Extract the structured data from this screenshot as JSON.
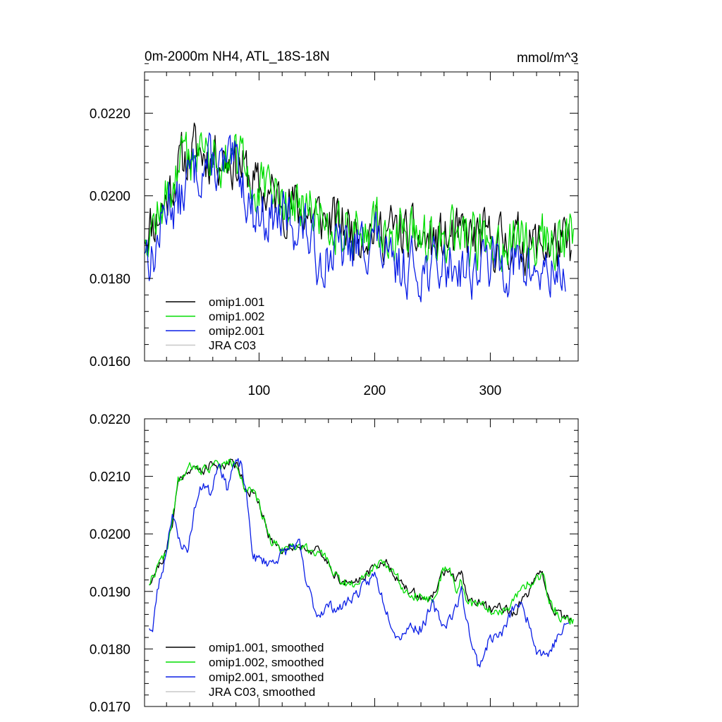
{
  "chart_data": [
    {
      "type": "line",
      "title": "0m-2000m NH4, ATL_18S-18N",
      "units_label": "mmol/m^3",
      "xlim": [
        1,
        376
      ],
      "ylim": [
        0.016,
        0.023
      ],
      "x_major_ticks": [
        100,
        200,
        300
      ],
      "x_tick_labels": [
        "100",
        "200",
        "300"
      ],
      "y_major_ticks": [
        0.016,
        0.018,
        0.02,
        0.022
      ],
      "y_tick_labels": [
        "0.0160",
        "0.0180",
        "0.0200",
        "0.0220"
      ],
      "legend_position": "bottom-left",
      "grid": false,
      "series": [
        {
          "name": "omip1.001",
          "color": "#000000",
          "keypoints": [
            [
              1,
              0.0192
            ],
            [
              10,
              0.0194
            ],
            [
              20,
              0.0199
            ],
            [
              30,
              0.0207
            ],
            [
              45,
              0.0211
            ],
            [
              55,
              0.021
            ],
            [
              70,
              0.021
            ],
            [
              85,
              0.0207
            ],
            [
              100,
              0.0201
            ],
            [
              120,
              0.0199
            ],
            [
              140,
              0.0196
            ],
            [
              160,
              0.0194
            ],
            [
              180,
              0.0192
            ],
            [
              200,
              0.0192
            ],
            [
              220,
              0.0191
            ],
            [
              240,
              0.0189
            ],
            [
              260,
              0.0189
            ],
            [
              280,
              0.019
            ],
            [
              300,
              0.0189
            ],
            [
              320,
              0.0189
            ],
            [
              340,
              0.0188
            ],
            [
              360,
              0.0188
            ],
            [
              370,
              0.0187
            ]
          ],
          "noise": 0.00105,
          "seed": 11
        },
        {
          "name": "omip1.002",
          "color": "#00dd00",
          "keypoints": [
            [
              1,
              0.0192
            ],
            [
              10,
              0.0194
            ],
            [
              20,
              0.0199
            ],
            [
              30,
              0.0207
            ],
            [
              45,
              0.0211
            ],
            [
              55,
              0.021
            ],
            [
              70,
              0.021
            ],
            [
              85,
              0.0207
            ],
            [
              100,
              0.0201
            ],
            [
              120,
              0.0199
            ],
            [
              140,
              0.0196
            ],
            [
              160,
              0.0194
            ],
            [
              180,
              0.0192
            ],
            [
              200,
              0.0192
            ],
            [
              220,
              0.0191
            ],
            [
              240,
              0.0189
            ],
            [
              260,
              0.0189
            ],
            [
              280,
              0.019
            ],
            [
              300,
              0.0189
            ],
            [
              320,
              0.0189
            ],
            [
              340,
              0.0189
            ],
            [
              360,
              0.0189
            ],
            [
              372,
              0.0188
            ]
          ],
          "noise": 0.00105,
          "seed": 12
        },
        {
          "name": "omip2.001",
          "color": "#0a1ee6",
          "keypoints": [
            [
              1,
              0.0189
            ],
            [
              8,
              0.0184
            ],
            [
              15,
              0.0192
            ],
            [
              22,
              0.02
            ],
            [
              30,
              0.0197
            ],
            [
              40,
              0.0205
            ],
            [
              55,
              0.0208
            ],
            [
              70,
              0.0206
            ],
            [
              82,
              0.0207
            ],
            [
              95,
              0.0196
            ],
            [
              110,
              0.0195
            ],
            [
              125,
              0.0194
            ],
            [
              140,
              0.0192
            ],
            [
              150,
              0.0185
            ],
            [
              170,
              0.0187
            ],
            [
              185,
              0.0187
            ],
            [
              200,
              0.0191
            ],
            [
              212,
              0.0182
            ],
            [
              230,
              0.0183
            ],
            [
              250,
              0.0182
            ],
            [
              270,
              0.0184
            ],
            [
              285,
              0.0182
            ],
            [
              300,
              0.0184
            ],
            [
              320,
              0.0183
            ],
            [
              335,
              0.0182
            ],
            [
              350,
              0.0181
            ],
            [
              365,
              0.0182
            ]
          ],
          "noise": 0.00105,
          "seed": 13
        },
        {
          "name": "JRA C03",
          "color": "#c8c8c8",
          "keypoints": [],
          "noise": 0,
          "seed": 14
        }
      ]
    },
    {
      "type": "line",
      "title": "",
      "xlim": [
        1,
        376
      ],
      "ylim": [
        0.017,
        0.022
      ],
      "x_major_ticks": [
        100,
        200,
        300
      ],
      "x_tick_labels": [],
      "y_major_ticks": [
        0.017,
        0.018,
        0.019,
        0.02,
        0.021,
        0.022
      ],
      "y_tick_labels": [
        "0.0170",
        "0.0180",
        "0.0190",
        "0.0200",
        "0.0210",
        "0.0220"
      ],
      "legend_position": "bottom-left",
      "grid": false,
      "series": [
        {
          "name": "omip1.001, smoothed",
          "color": "#000000",
          "keypoints": [
            [
              5,
              0.01915
            ],
            [
              10,
              0.01935
            ],
            [
              15,
              0.0195
            ],
            [
              20,
              0.0197
            ],
            [
              25,
              0.0202
            ],
            [
              30,
              0.0209
            ],
            [
              40,
              0.02115
            ],
            [
              50,
              0.0211
            ],
            [
              60,
              0.0212
            ],
            [
              70,
              0.0212
            ],
            [
              75,
              0.02125
            ],
            [
              82,
              0.0212
            ],
            [
              88,
              0.0208
            ],
            [
              95,
              0.0207
            ],
            [
              100,
              0.0205
            ],
            [
              105,
              0.0202
            ],
            [
              110,
              0.0199
            ],
            [
              120,
              0.01975
            ],
            [
              135,
              0.0198
            ],
            [
              150,
              0.0197
            ],
            [
              160,
              0.0195
            ],
            [
              170,
              0.0192
            ],
            [
              180,
              0.0191
            ],
            [
              190,
              0.0193
            ],
            [
              200,
              0.0194
            ],
            [
              205,
              0.01955
            ],
            [
              215,
              0.0194
            ],
            [
              225,
              0.01905
            ],
            [
              240,
              0.0189
            ],
            [
              250,
              0.01885
            ],
            [
              258,
              0.0193
            ],
            [
              265,
              0.0194
            ],
            [
              270,
              0.0191
            ],
            [
              275,
              0.01935
            ],
            [
              280,
              0.0189
            ],
            [
              290,
              0.0188
            ],
            [
              300,
              0.0187
            ],
            [
              310,
              0.01875
            ],
            [
              320,
              0.0186
            ],
            [
              330,
              0.0189
            ],
            [
              340,
              0.0192
            ],
            [
              345,
              0.0193
            ],
            [
              350,
              0.0189
            ],
            [
              360,
              0.01855
            ],
            [
              370,
              0.0185
            ]
          ],
          "noise": 0.00014,
          "seed": 21
        },
        {
          "name": "omip1.002, smoothed",
          "color": "#00dd00",
          "keypoints": [
            [
              5,
              0.01915
            ],
            [
              10,
              0.01935
            ],
            [
              15,
              0.0195
            ],
            [
              20,
              0.0197
            ],
            [
              25,
              0.0202
            ],
            [
              30,
              0.0209
            ],
            [
              40,
              0.02115
            ],
            [
              50,
              0.0211
            ],
            [
              60,
              0.0212
            ],
            [
              70,
              0.0212
            ],
            [
              75,
              0.02125
            ],
            [
              82,
              0.0212
            ],
            [
              88,
              0.0208
            ],
            [
              95,
              0.0207
            ],
            [
              100,
              0.0205
            ],
            [
              105,
              0.0202
            ],
            [
              110,
              0.0199
            ],
            [
              120,
              0.01975
            ],
            [
              135,
              0.0198
            ],
            [
              150,
              0.0197
            ],
            [
              160,
              0.0195
            ],
            [
              170,
              0.0192
            ],
            [
              180,
              0.0191
            ],
            [
              190,
              0.0193
            ],
            [
              200,
              0.0194
            ],
            [
              205,
              0.01955
            ],
            [
              215,
              0.0194
            ],
            [
              225,
              0.01905
            ],
            [
              240,
              0.0189
            ],
            [
              250,
              0.01885
            ],
            [
              258,
              0.0193
            ],
            [
              265,
              0.0194
            ],
            [
              270,
              0.019
            ],
            [
              275,
              0.0192
            ],
            [
              280,
              0.0188
            ],
            [
              290,
              0.01875
            ],
            [
              300,
              0.0187
            ],
            [
              310,
              0.01865
            ],
            [
              320,
              0.0188
            ],
            [
              330,
              0.0191
            ],
            [
              340,
              0.0192
            ],
            [
              345,
              0.0193
            ],
            [
              350,
              0.0189
            ],
            [
              360,
              0.01855
            ],
            [
              372,
              0.0185
            ]
          ],
          "noise": 0.00014,
          "seed": 22
        },
        {
          "name": "omip2.001, smoothed",
          "color": "#0a1ee6",
          "keypoints": [
            [
              5,
              0.0184
            ],
            [
              8,
              0.0183
            ],
            [
              12,
              0.019
            ],
            [
              18,
              0.0195
            ],
            [
              25,
              0.0204
            ],
            [
              30,
              0.0199
            ],
            [
              38,
              0.0197
            ],
            [
              45,
              0.0205
            ],
            [
              52,
              0.0209
            ],
            [
              58,
              0.0207
            ],
            [
              65,
              0.0213
            ],
            [
              72,
              0.0208
            ],
            [
              78,
              0.0212
            ],
            [
              85,
              0.0212
            ],
            [
              90,
              0.0205
            ],
            [
              95,
              0.0196
            ],
            [
              100,
              0.01955
            ],
            [
              110,
              0.0195
            ],
            [
              120,
              0.01965
            ],
            [
              130,
              0.0198
            ],
            [
              135,
              0.0198
            ],
            [
              140,
              0.0192
            ],
            [
              150,
              0.0186
            ],
            [
              160,
              0.01875
            ],
            [
              170,
              0.0187
            ],
            [
              180,
              0.0189
            ],
            [
              190,
              0.01905
            ],
            [
              200,
              0.0193
            ],
            [
              210,
              0.0187
            ],
            [
              220,
              0.0182
            ],
            [
              230,
              0.0184
            ],
            [
              240,
              0.01835
            ],
            [
              250,
              0.01875
            ],
            [
              260,
              0.0184
            ],
            [
              270,
              0.0187
            ],
            [
              275,
              0.019
            ],
            [
              285,
              0.018
            ],
            [
              290,
              0.0177
            ],
            [
              300,
              0.0182
            ],
            [
              310,
              0.01825
            ],
            [
              320,
              0.0187
            ],
            [
              325,
              0.0188
            ],
            [
              335,
              0.0184
            ],
            [
              340,
              0.018
            ],
            [
              350,
              0.0179
            ],
            [
              358,
              0.0182
            ],
            [
              368,
              0.01845
            ]
          ],
          "noise": 0.00016,
          "seed": 23
        },
        {
          "name": "JRA C03, smoothed",
          "color": "#c8c8c8",
          "keypoints": [],
          "noise": 0,
          "seed": 24
        }
      ]
    }
  ]
}
